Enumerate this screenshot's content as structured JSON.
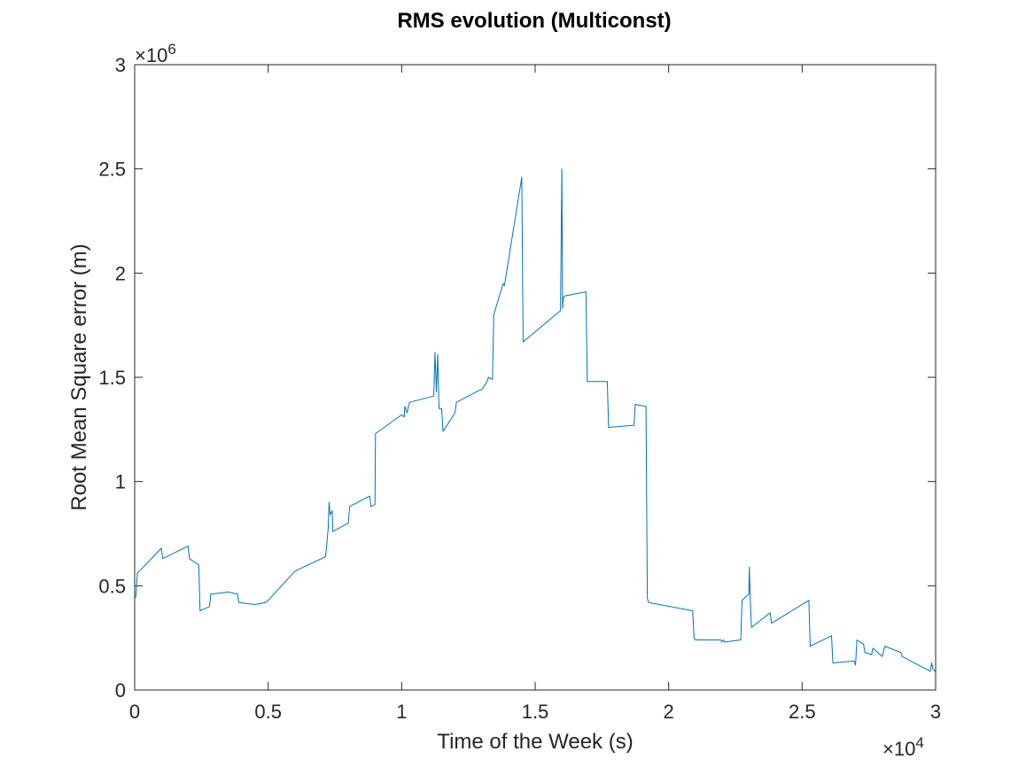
{
  "chart_data": {
    "type": "line",
    "title": "RMS evolution (Multiconst)",
    "xlabel": "Time of the Week (s)",
    "ylabel": "Root Mean Square error (m)",
    "x_multiplier": "×10",
    "x_exponent": "4",
    "y_multiplier": "×10",
    "y_exponent": "6",
    "xlim": [
      0,
      30000
    ],
    "ylim": [
      0,
      3000000
    ],
    "grid": false,
    "x_ticks": [
      0,
      5000,
      10000,
      15000,
      20000,
      25000,
      30000
    ],
    "x_tick_labels": [
      "0",
      "0.5",
      "1",
      "1.5",
      "2",
      "2.5",
      "3"
    ],
    "y_ticks": [
      0,
      500000,
      1000000,
      1500000,
      2000000,
      2500000,
      3000000
    ],
    "y_tick_labels": [
      "0",
      "0.5",
      "1",
      "1.5",
      "2",
      "2.5",
      "3"
    ],
    "series": [
      {
        "color": "#0072bd",
        "x": [
          0,
          50,
          100,
          1000,
          1050,
          2000,
          2050,
          2400,
          2450,
          2800,
          2850,
          3500,
          3850,
          3900,
          4500,
          4900,
          5000,
          6000,
          7150,
          7250,
          7280,
          7320,
          7400,
          7420,
          8000,
          8050,
          8800,
          8850,
          9000,
          9020,
          10000,
          10100,
          10120,
          10200,
          10250,
          10300,
          11200,
          11250,
          11300,
          11350,
          11400,
          11500,
          11550,
          12000,
          12050,
          12950,
          13000,
          13200,
          13250,
          13400,
          13450,
          13800,
          13850,
          14500,
          14550,
          15950,
          16000,
          16030,
          16060,
          16100,
          16900,
          16950,
          17700,
          17750,
          18700,
          18750,
          19150,
          19200,
          19250,
          20900,
          20950,
          21000,
          21950,
          22000,
          22050,
          22100,
          22700,
          22750,
          23000,
          23020,
          23050,
          23100,
          23800,
          23850,
          25250,
          25300,
          26100,
          26150,
          26200,
          26950,
          27000,
          27050,
          27300,
          27350,
          27600,
          27650,
          28000,
          28100,
          28700,
          28750,
          29800,
          29850,
          29900,
          29950,
          30000
        ],
        "y": [
          440000,
          450000,
          560000,
          680000,
          630000,
          690000,
          630000,
          600000,
          380000,
          400000,
          460000,
          470000,
          460000,
          420000,
          410000,
          420000,
          430000,
          570000,
          640000,
          780000,
          900000,
          840000,
          860000,
          760000,
          800000,
          880000,
          930000,
          880000,
          890000,
          1230000,
          1320000,
          1310000,
          1360000,
          1330000,
          1360000,
          1380000,
          1410000,
          1620000,
          1430000,
          1610000,
          1350000,
          1350000,
          1240000,
          1330000,
          1380000,
          1440000,
          1440000,
          1480000,
          1500000,
          1490000,
          1800000,
          1950000,
          1940000,
          2460000,
          1670000,
          1820000,
          2500000,
          1830000,
          1880000,
          1890000,
          1910000,
          1480000,
          1480000,
          1260000,
          1270000,
          1370000,
          1360000,
          440000,
          420000,
          380000,
          250000,
          240000,
          240000,
          230000,
          240000,
          230000,
          240000,
          430000,
          460000,
          590000,
          450000,
          300000,
          370000,
          320000,
          430000,
          210000,
          260000,
          130000,
          130000,
          140000,
          120000,
          240000,
          220000,
          180000,
          170000,
          200000,
          160000,
          210000,
          180000,
          160000,
          90000,
          130000,
          100000,
          95000,
          85000
        ]
      }
    ]
  }
}
